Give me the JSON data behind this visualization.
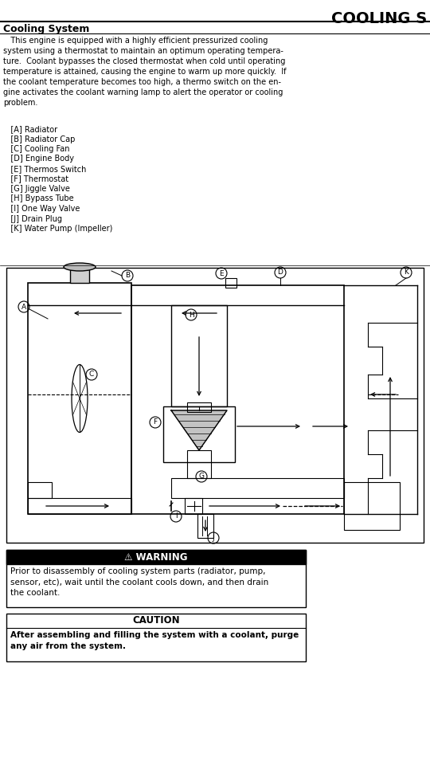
{
  "title_right": "COOLING S",
  "section_title": "Cooling System",
  "body_text": "   This engine is equipped with a highly efficient pressurized cooling\nsystem using a thermostat to maintain an optimum operating tempera-\nture.  Coolant bypasses the closed thermostat when cold until operating\ntemperature is attained, causing the engine to warm up more quickly.  If\nthe coolant temperature becomes too high, a thermo switch on the en-\ngine activates the coolant warning lamp to alert the operator or cooling\nproblem.",
  "parts_list": [
    "   [A] Radiator",
    "   [B] Radiator Cap",
    "   [C] Cooling Fan",
    "   [D] Engine Body",
    "   [E] Thermos Switch",
    "   [F] Thermostat",
    "   [G] Jiggle Valve",
    "   [H] Bypass Tube",
    "   [I] One Way Valve",
    "   [J] Drain Plug",
    "   [K] Water Pump (Impeller)"
  ],
  "warning_title": "⚠ WARNING",
  "warning_text": "Prior to disassembly of cooling system parts (radiator, pump,\nsensor, etc), wait until the coolant cools down, and then drain\nthe coolant.",
  "caution_title": "CAUTION",
  "caution_text": "After assembling and filling the system with a coolant, purge\nany air from the system.",
  "bg_color": "#ffffff",
  "line_color": "#000000"
}
